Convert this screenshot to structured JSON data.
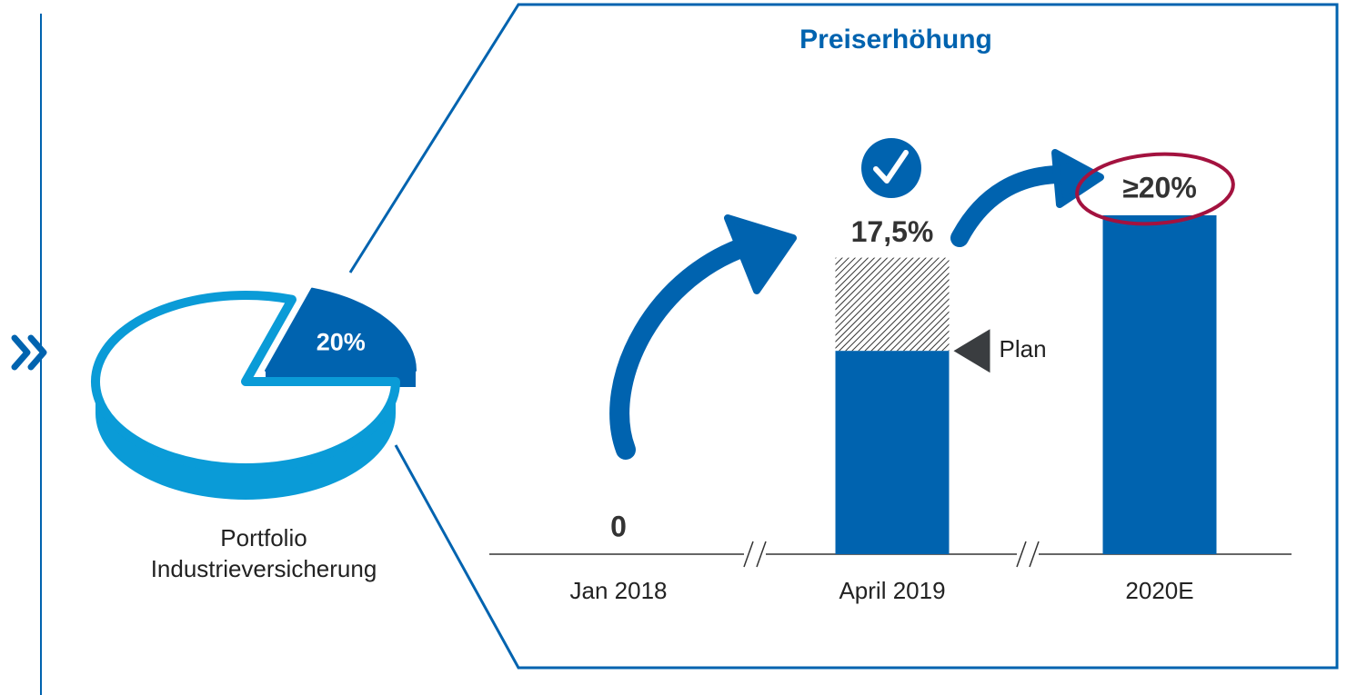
{
  "chart_data": [
    {
      "type": "pie",
      "title": "Portfolio Industrieversicherung",
      "values": [
        20,
        80
      ],
      "value_labels": [
        "20%",
        null
      ],
      "colors": [
        "#0063af",
        "#0a9bd7"
      ]
    },
    {
      "type": "bar",
      "title": "Preiserhöhung",
      "categories": [
        "Jan 2018",
        "April 2019",
        "2020E"
      ],
      "values": [
        0,
        17.5,
        20
      ],
      "value_labels": [
        "0",
        "17,5%",
        "≥20%"
      ],
      "color": "#0063af",
      "plan": {
        "label": "Plan",
        "value": 12
      }
    }
  ]
}
